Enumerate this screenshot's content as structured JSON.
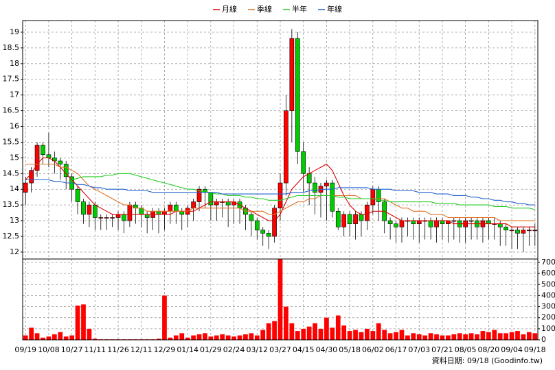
{
  "chart_data": [
    {
      "type": "candlestick",
      "grid": true,
      "legend": "top",
      "open": [
        13.9,
        14.2,
        14.6,
        15.4,
        15.1,
        15.0,
        14.9,
        14.8,
        14.4,
        14.0,
        13.6,
        13.2,
        13.5,
        13.1,
        13.1,
        13.1,
        13.1,
        13.2,
        13.0,
        13.5,
        13.4,
        13.2,
        13.1,
        13.3,
        13.2,
        13.3,
        13.5,
        13.3,
        13.2,
        13.4,
        13.6,
        14.0,
        13.9,
        13.5,
        13.6,
        13.6,
        13.5,
        13.6,
        13.4,
        13.2,
        13.0,
        12.7,
        12.6,
        12.5,
        13.4,
        14.2,
        16.5,
        18.8,
        15.2,
        14.5,
        14.2,
        13.9,
        14.1,
        14.2,
        13.3,
        12.8,
        13.2,
        12.9,
        13.2,
        13.0,
        13.5,
        14.0,
        13.6,
        13.0,
        12.9,
        12.8,
        13.0,
        13.0,
        12.9,
        13.0,
        13.0,
        12.8,
        13.0,
        12.9,
        13.0,
        13.0,
        12.8,
        13.0,
        13.0,
        12.8,
        13.0,
        12.9,
        12.9,
        12.8,
        12.7,
        12.7,
        12.6,
        12.7,
        12.7
      ],
      "high": [
        14.4,
        14.7,
        15.5,
        15.5,
        15.8,
        15.2,
        15.0,
        14.9,
        14.5,
        14.1,
        13.7,
        13.6,
        13.6,
        13.2,
        13.2,
        13.2,
        13.3,
        13.3,
        13.6,
        13.6,
        13.5,
        13.3,
        13.4,
        13.4,
        13.4,
        13.6,
        13.6,
        13.4,
        13.5,
        13.7,
        14.1,
        14.1,
        13.9,
        13.7,
        13.7,
        13.7,
        13.7,
        13.7,
        13.5,
        13.3,
        13.1,
        12.8,
        12.7,
        13.5,
        14.5,
        17.0,
        19.1,
        19.0,
        15.5,
        14.7,
        14.4,
        14.2,
        14.3,
        14.3,
        13.4,
        13.3,
        13.3,
        13.3,
        13.3,
        13.6,
        14.1,
        14.1,
        13.7,
        13.1,
        13.0,
        13.1,
        13.1,
        13.1,
        13.1,
        13.1,
        13.1,
        13.1,
        13.1,
        13.0,
        13.1,
        13.1,
        13.1,
        13.1,
        13.1,
        13.1,
        13.1,
        13.1,
        13.0,
        12.9,
        12.8,
        12.8,
        12.8,
        12.8,
        12.9
      ],
      "low": [
        13.5,
        13.9,
        14.4,
        14.8,
        14.7,
        14.5,
        14.3,
        14.0,
        13.6,
        13.2,
        12.9,
        12.8,
        12.7,
        12.7,
        12.7,
        12.8,
        12.7,
        12.6,
        12.8,
        12.9,
        12.8,
        12.6,
        12.7,
        12.6,
        12.7,
        12.9,
        12.9,
        12.7,
        12.8,
        13.0,
        13.3,
        13.4,
        13.0,
        13.0,
        13.1,
        12.8,
        12.9,
        12.9,
        12.7,
        12.5,
        12.4,
        12.2,
        12.1,
        12.3,
        13.0,
        13.8,
        15.5,
        14.8,
        13.9,
        13.5,
        13.2,
        13.1,
        13.0,
        13.1,
        12.7,
        12.5,
        12.5,
        12.4,
        12.5,
        12.7,
        13.2,
        13.0,
        12.6,
        12.4,
        12.3,
        12.3,
        12.5,
        12.4,
        12.3,
        12.4,
        12.4,
        12.3,
        12.4,
        12.3,
        12.4,
        12.3,
        12.3,
        12.4,
        12.4,
        12.3,
        12.4,
        12.4,
        12.2,
        12.2,
        12.1,
        12.1,
        12.0,
        12.2,
        12.2
      ],
      "close": [
        14.2,
        14.6,
        15.4,
        15.1,
        15.0,
        14.9,
        14.8,
        14.4,
        14.0,
        13.6,
        13.2,
        13.5,
        13.1,
        13.1,
        13.1,
        13.1,
        13.2,
        13.0,
        13.5,
        13.4,
        13.2,
        13.1,
        13.3,
        13.2,
        13.3,
        13.5,
        13.3,
        13.2,
        13.4,
        13.6,
        14.0,
        13.9,
        13.5,
        13.6,
        13.6,
        13.5,
        13.6,
        13.4,
        13.2,
        13.0,
        12.7,
        12.6,
        12.5,
        13.4,
        14.2,
        16.5,
        18.8,
        15.2,
        14.5,
        14.2,
        13.9,
        14.1,
        14.2,
        13.3,
        12.8,
        13.2,
        12.9,
        13.2,
        13.0,
        13.5,
        14.0,
        13.6,
        13.0,
        12.9,
        12.8,
        13.0,
        13.0,
        12.9,
        13.0,
        13.0,
        12.8,
        13.0,
        12.9,
        13.0,
        13.0,
        12.8,
        13.0,
        13.0,
        12.8,
        13.0,
        12.9,
        12.9,
        12.8,
        12.7,
        12.7,
        12.6,
        12.7,
        12.7,
        12.7
      ],
      "up_color": "#ff0000",
      "down_color": "#00cc00",
      "series": [
        {
          "name": "月線",
          "color": "#dd0000",
          "values": [
            14.3,
            14.5,
            14.8,
            15.0,
            15.0,
            14.9,
            14.7,
            14.5,
            14.3,
            14.1,
            13.9,
            13.7,
            13.5,
            13.4,
            13.3,
            13.2,
            13.2,
            13.2,
            13.2,
            13.2,
            13.2,
            13.2,
            13.2,
            13.2,
            13.2,
            13.2,
            13.3,
            13.3,
            13.3,
            13.3,
            13.4,
            13.5,
            13.6,
            13.6,
            13.6,
            13.6,
            13.6,
            13.5,
            13.4,
            13.3,
            13.2,
            13.1,
            13.0,
            13.0,
            13.2,
            13.6,
            14.0,
            14.2,
            14.4,
            14.5,
            14.6,
            14.7,
            14.8,
            14.6,
            14.2,
            13.8,
            13.5,
            13.3,
            13.2,
            13.2,
            13.3,
            13.3,
            13.3,
            13.2,
            13.1,
            13.0,
            13.0,
            13.0,
            13.0,
            13.0,
            13.0,
            13.0,
            13.0,
            13.0,
            12.9,
            12.9,
            12.9,
            12.9,
            12.9,
            12.9,
            12.9,
            12.9,
            12.9,
            12.9,
            12.8,
            12.8,
            12.8,
            12.8,
            12.8
          ]
        },
        {
          "name": "季線",
          "color": "#e07020",
          "values": [
            14.8,
            14.8,
            14.8,
            14.8,
            14.8,
            14.8,
            14.7,
            14.7,
            14.6,
            14.5,
            14.3,
            14.1,
            14.0,
            13.9,
            13.8,
            13.7,
            13.6,
            13.5,
            13.5,
            13.4,
            13.4,
            13.3,
            13.3,
            13.3,
            13.3,
            13.3,
            13.3,
            13.3,
            13.3,
            13.4,
            13.4,
            13.4,
            13.4,
            13.4,
            13.4,
            13.4,
            13.4,
            13.4,
            13.3,
            13.3,
            13.3,
            13.3,
            13.2,
            13.2,
            13.3,
            13.4,
            13.5,
            13.6,
            13.6,
            13.7,
            13.7,
            13.8,
            13.8,
            13.8,
            13.8,
            13.8,
            13.8,
            13.8,
            13.7,
            13.7,
            13.7,
            13.7,
            13.7,
            13.6,
            13.5,
            13.4,
            13.4,
            13.3,
            13.3,
            13.3,
            13.2,
            13.2,
            13.2,
            13.1,
            13.1,
            13.1,
            13.1,
            13.1,
            13.1,
            13.1,
            13.1,
            13.1,
            13.0,
            13.0,
            13.0,
            13.0,
            13.0,
            13.0,
            13.0
          ]
        },
        {
          "name": "半年",
          "color": "#22cc22",
          "values": [
            null,
            null,
            null,
            null,
            null,
            null,
            null,
            null,
            14.3,
            14.35,
            14.4,
            14.4,
            14.4,
            14.4,
            14.45,
            14.45,
            14.5,
            14.5,
            14.5,
            14.45,
            14.4,
            14.35,
            14.3,
            14.25,
            14.2,
            14.15,
            14.1,
            14.05,
            14.0,
            14.0,
            13.95,
            13.9,
            13.9,
            13.85,
            13.85,
            13.8,
            13.8,
            13.8,
            13.75,
            13.75,
            13.7,
            13.7,
            13.65,
            13.65,
            13.65,
            13.7,
            13.75,
            13.8,
            13.8,
            13.8,
            13.8,
            13.8,
            13.8,
            13.8,
            13.75,
            13.75,
            13.7,
            13.7,
            13.7,
            13.7,
            13.7,
            13.65,
            13.65,
            13.6,
            13.6,
            13.6,
            13.6,
            13.6,
            13.6,
            13.6,
            13.6,
            13.55,
            13.55,
            13.55,
            13.55,
            13.5,
            13.5,
            13.5,
            13.5,
            13.5,
            13.5,
            13.45,
            13.45,
            13.45,
            13.4,
            13.4,
            13.4,
            13.4,
            13.35
          ]
        },
        {
          "name": "年線",
          "color": "#2060d0",
          "values": [
            14.3,
            14.3,
            14.3,
            14.3,
            14.3,
            14.25,
            14.25,
            14.2,
            14.2,
            14.15,
            14.15,
            14.1,
            14.05,
            14.05,
            14.0,
            14.0,
            14.0,
            14.0,
            13.95,
            13.95,
            13.95,
            13.95,
            13.9,
            13.9,
            13.9,
            13.9,
            13.9,
            13.9,
            13.9,
            13.9,
            13.9,
            13.9,
            13.9,
            13.9,
            13.85,
            13.85,
            13.85,
            13.85,
            13.85,
            13.85,
            13.85,
            13.85,
            13.85,
            13.85,
            13.85,
            13.85,
            13.9,
            13.9,
            13.9,
            13.95,
            13.95,
            14.0,
            14.0,
            14.0,
            14.05,
            14.05,
            14.05,
            14.05,
            14.05,
            14.05,
            14.0,
            14.0,
            14.0,
            14.0,
            13.95,
            13.95,
            13.95,
            13.95,
            13.9,
            13.9,
            13.9,
            13.85,
            13.85,
            13.85,
            13.8,
            13.8,
            13.8,
            13.75,
            13.75,
            13.7,
            13.7,
            13.65,
            13.65,
            13.6,
            13.6,
            13.55,
            13.55,
            13.5,
            13.5
          ]
        }
      ],
      "ylim": [
        11.78,
        19.37
      ],
      "yticks": [
        12,
        12.5,
        13,
        13.5,
        14,
        14.5,
        15,
        15.5,
        16,
        16.5,
        17,
        17.5,
        18,
        18.5,
        19
      ]
    },
    {
      "type": "bar",
      "grid": true,
      "yaxis": "right",
      "color": "#ff0000",
      "categories": [
        "09/19",
        null,
        null,
        null,
        "10/08",
        null,
        null,
        null,
        "10/27",
        null,
        null,
        null,
        "11/11",
        null,
        null,
        null,
        "11/26",
        null,
        null,
        null,
        "12/11",
        null,
        null,
        null,
        "12/29",
        null,
        null,
        null,
        "01/14",
        null,
        null,
        null,
        "01/29",
        null,
        null,
        null,
        "02/24",
        null,
        null,
        null,
        "03/12",
        null,
        null,
        null,
        "03/27",
        null,
        null,
        null,
        "04/15",
        null,
        null,
        null,
        "04/30",
        null,
        null,
        null,
        "05/18",
        null,
        null,
        null,
        "06/02",
        null,
        null,
        null,
        "06/17",
        null,
        null,
        null,
        "07/03",
        null,
        null,
        null,
        "07/21",
        null,
        null,
        null,
        "08/05",
        null,
        null,
        null,
        "08/20",
        null,
        null,
        null,
        "09/04",
        null,
        null,
        null,
        "09/18"
      ],
      "values": [
        40,
        110,
        60,
        20,
        30,
        50,
        70,
        30,
        40,
        310,
        320,
        100,
        10,
        5,
        5,
        5,
        5,
        5,
        5,
        5,
        5,
        5,
        5,
        10,
        400,
        20,
        40,
        60,
        20,
        40,
        50,
        60,
        30,
        40,
        50,
        40,
        30,
        40,
        50,
        60,
        40,
        90,
        150,
        170,
        730,
        300,
        150,
        80,
        100,
        120,
        150,
        100,
        200,
        110,
        220,
        130,
        80,
        90,
        70,
        100,
        80,
        150,
        90,
        60,
        70,
        90,
        40,
        60,
        50,
        40,
        60,
        50,
        40,
        40,
        50,
        60,
        50,
        60,
        50,
        80,
        70,
        90,
        60,
        60,
        70,
        80,
        50,
        70,
        60
      ],
      "ylim": [
        0,
        737
      ],
      "yticks": [
        0,
        100,
        200,
        300,
        400,
        500,
        600,
        700
      ],
      "footnote": "資料日期: 09/18 (Goodinfo.tw)"
    }
  ]
}
